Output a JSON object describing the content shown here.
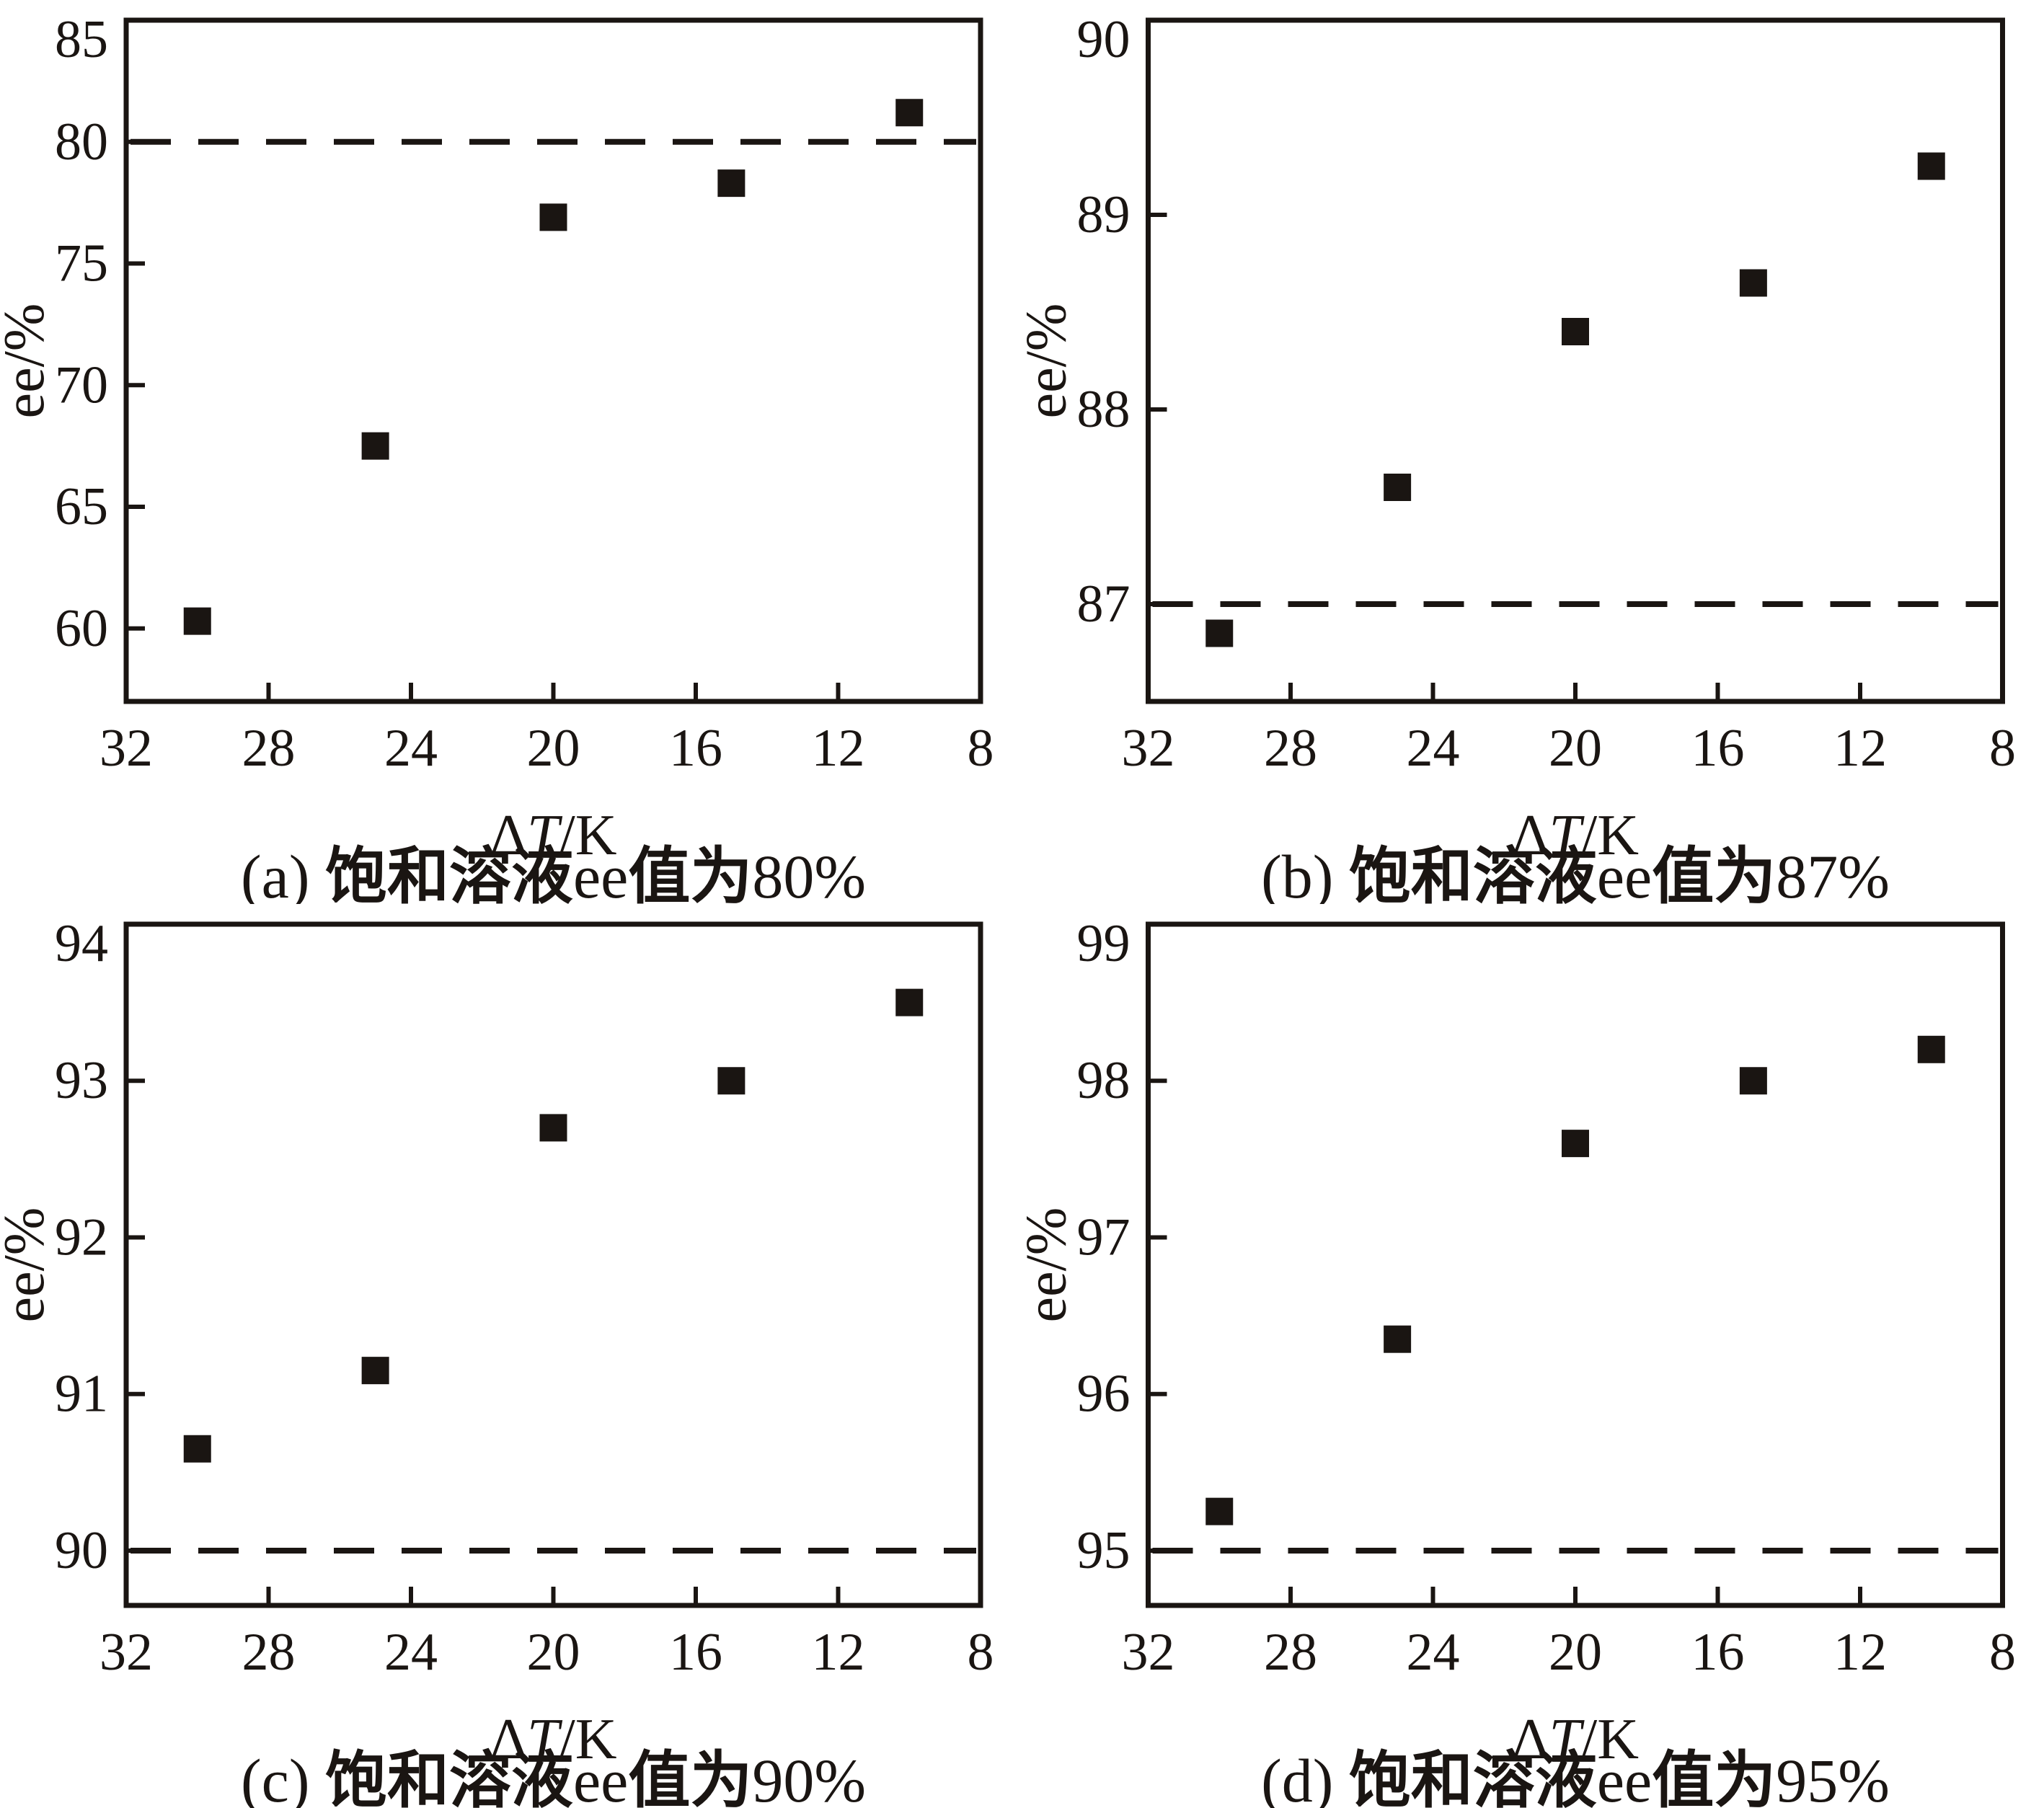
{
  "figure": {
    "y_axis_label": "ee/%",
    "x_label_parts": {
      "prefix": "Δ",
      "italic": "T",
      "suffix": "/K"
    },
    "marker_color": "#1a1512",
    "axis_color": "#1a1512"
  },
  "chart_data": [
    {
      "type": "scatter",
      "title": "(a) 饱和溶液ee值为80%",
      "caption_segments": [
        {
          "text": "(a) ",
          "bold": false
        },
        {
          "text": "饱和溶液",
          "bold": true
        },
        {
          "text": "ee",
          "bold": false
        },
        {
          "text": "值为",
          "bold": true
        },
        {
          "text": "80%",
          "bold": false
        }
      ],
      "xlabel": "ΔT/K",
      "ylabel": "ee/%",
      "x": [
        30,
        25,
        20,
        15,
        10
      ],
      "y": [
        60.3,
        67.5,
        76.9,
        78.3,
        81.2
      ],
      "dashed_reference_y": 80,
      "xlim": [
        32,
        8
      ],
      "ylim": [
        57,
        85
      ],
      "xticks": [
        32,
        28,
        24,
        20,
        16,
        12,
        8
      ],
      "yticks": [
        85,
        80,
        75,
        70,
        65,
        60
      ],
      "x_axis_reversed": true,
      "marker": "square",
      "grid": false,
      "legend": null
    },
    {
      "type": "scatter",
      "title": "(b) 饱和溶液ee值为87%",
      "caption_segments": [
        {
          "text": "(b) ",
          "bold": false
        },
        {
          "text": "饱和溶液",
          "bold": true
        },
        {
          "text": "ee",
          "bold": false
        },
        {
          "text": "值为",
          "bold": true
        },
        {
          "text": "87%",
          "bold": false
        }
      ],
      "xlabel": "ΔT/K",
      "ylabel": "ee/%",
      "x": [
        30,
        25,
        20,
        15,
        10
      ],
      "y": [
        86.85,
        87.6,
        88.4,
        88.65,
        89.25
      ],
      "dashed_reference_y": 87,
      "xlim": [
        32,
        8
      ],
      "ylim": [
        86.5,
        90
      ],
      "xticks": [
        32,
        28,
        24,
        20,
        16,
        12,
        8
      ],
      "yticks": [
        90,
        89,
        88,
        87
      ],
      "x_axis_reversed": true,
      "marker": "square",
      "grid": false,
      "legend": null
    },
    {
      "type": "scatter",
      "title": "(c) 饱和溶液ee值为90%",
      "caption_segments": [
        {
          "text": "(c) ",
          "bold": false
        },
        {
          "text": "饱和溶液",
          "bold": true
        },
        {
          "text": "ee",
          "bold": false
        },
        {
          "text": "值为",
          "bold": true
        },
        {
          "text": "90%",
          "bold": false
        }
      ],
      "xlabel": "ΔT/K",
      "ylabel": "ee/%",
      "x": [
        30,
        25,
        20,
        15,
        10
      ],
      "y": [
        90.65,
        91.15,
        92.7,
        93.0,
        93.5
      ],
      "dashed_reference_y": 90,
      "xlim": [
        32,
        8
      ],
      "ylim": [
        89.65,
        94
      ],
      "xticks": [
        32,
        28,
        24,
        20,
        16,
        12,
        8
      ],
      "yticks": [
        94,
        93,
        92,
        91,
        90
      ],
      "x_axis_reversed": true,
      "marker": "square",
      "grid": false,
      "legend": null
    },
    {
      "type": "scatter",
      "title": "(d) 饱和溶液ee值为95%",
      "caption_segments": [
        {
          "text": "(d) ",
          "bold": false
        },
        {
          "text": "饱和溶液",
          "bold": true
        },
        {
          "text": "ee",
          "bold": false
        },
        {
          "text": "值为",
          "bold": true
        },
        {
          "text": "95%",
          "bold": false
        }
      ],
      "xlabel": "ΔT/K",
      "ylabel": "ee/%",
      "x": [
        30,
        25,
        20,
        15,
        10
      ],
      "y": [
        95.25,
        96.35,
        97.6,
        98.0,
        98.2
      ],
      "dashed_reference_y": 95,
      "xlim": [
        32,
        8
      ],
      "ylim": [
        94.65,
        99
      ],
      "xticks": [
        32,
        28,
        24,
        20,
        16,
        12,
        8
      ],
      "yticks": [
        99,
        98,
        97,
        96,
        95
      ],
      "x_axis_reversed": true,
      "marker": "square",
      "grid": false,
      "legend": null
    }
  ]
}
